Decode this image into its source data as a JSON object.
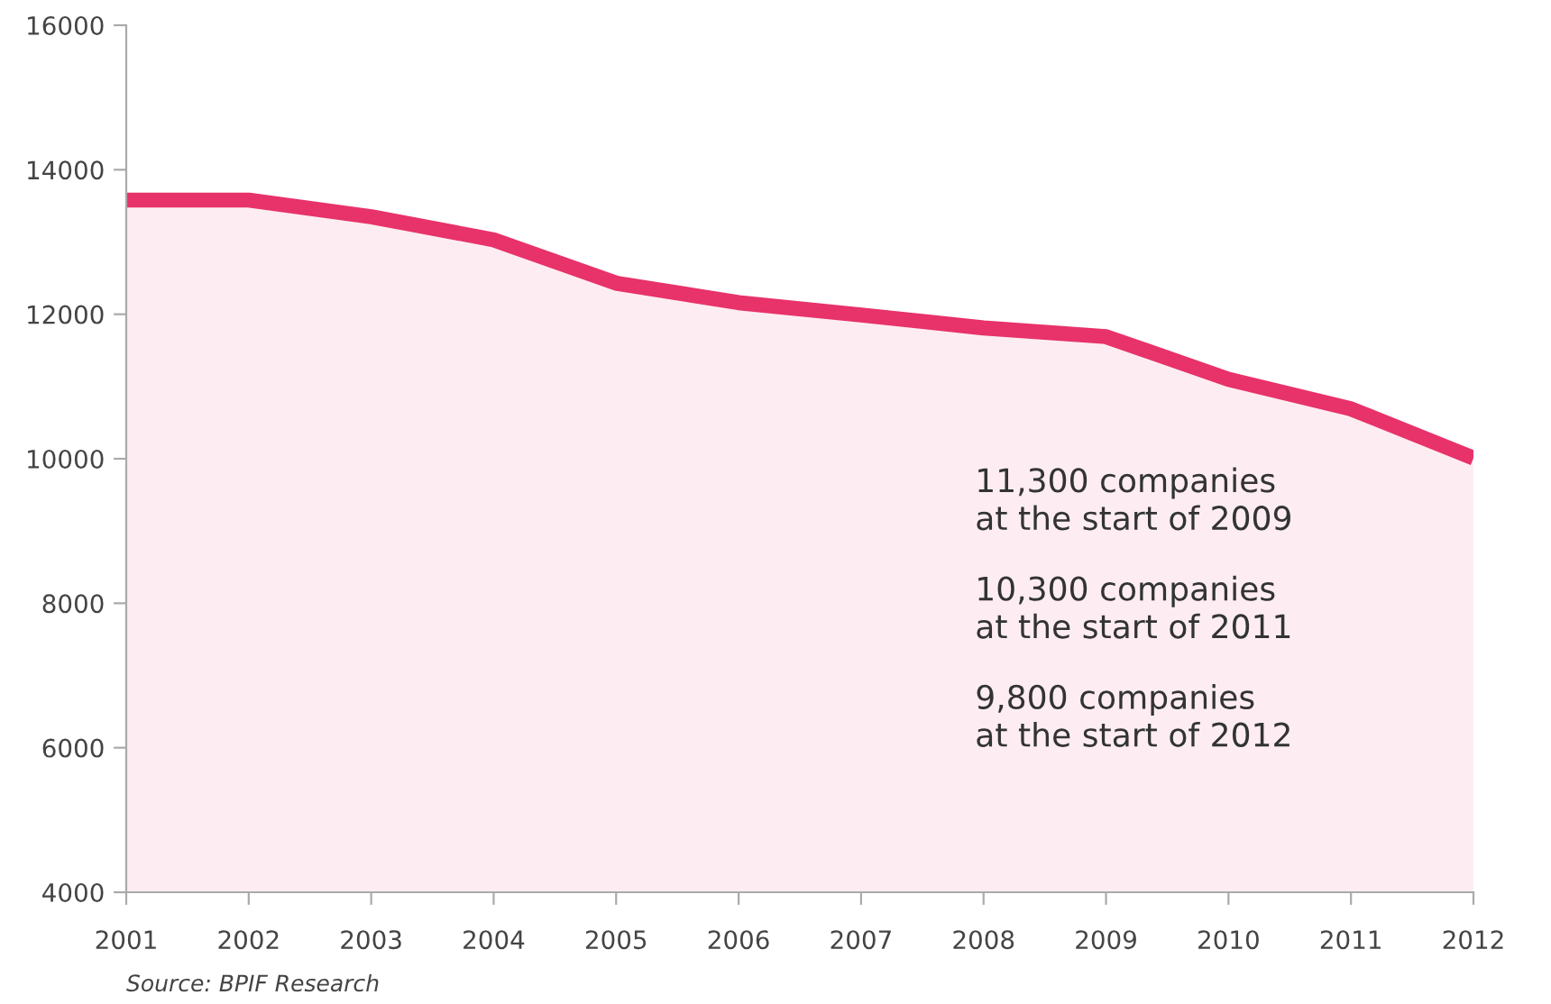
{
  "chart_data": {
    "type": "area",
    "x": [
      2001,
      2002,
      2003,
      2004,
      2005,
      2006,
      2007,
      2008,
      2009,
      2010,
      2011,
      2012
    ],
    "series": [
      {
        "color": "#e8326a",
        "values": [
          13580,
          13580,
          13350,
          13030,
          12430,
          12160,
          11990,
          11810,
          11690,
          11100,
          10690,
          10010
        ]
      }
    ],
    "xlim": [
      2001,
      2012
    ],
    "xticks": [
      2001,
      2002,
      2003,
      2004,
      2005,
      2006,
      2007,
      2008,
      2009,
      2010,
      2011,
      2012
    ],
    "ylim": [
      4000,
      16000
    ],
    "yticks": [
      4000,
      6000,
      8000,
      10000,
      12000,
      14000,
      16000
    ],
    "grid": false,
    "legend": false,
    "annotations": [
      "11,300 companies\nat the start of 2009",
      "10,300 companies\nat the start of 2011",
      "9,800 companies\nat the start of 2012",
      "Source: BPIF Research"
    ]
  }
}
